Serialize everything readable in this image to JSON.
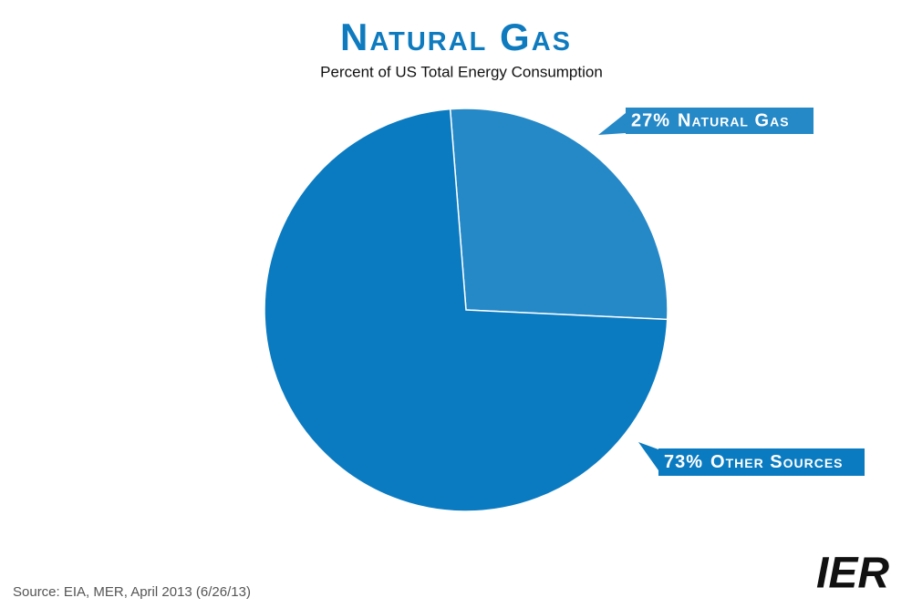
{
  "chart_data": {
    "type": "pie",
    "title": "Natural Gas",
    "subtitle": "Percent of US Total Energy Consumption",
    "categories": [
      "Natural Gas",
      "Other Sources"
    ],
    "values": [
      27,
      73
    ],
    "value_labels": [
      "27%",
      "73%"
    ],
    "colors": [
      "#2589c8",
      "#0b7bc1"
    ],
    "start_angle": -4.5,
    "source": "Source: EIA, MER, April 2013 (6/26/13)",
    "logo": "IER"
  }
}
